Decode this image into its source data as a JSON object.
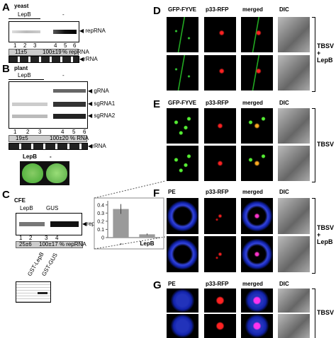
{
  "panels": {
    "A": {
      "letter": "A",
      "title": "yeast",
      "group1": "LepB",
      "group2": "-",
      "band": "repRNA",
      "lanes": [
        "1",
        "2",
        "3",
        "4",
        "5",
        "6"
      ],
      "quant1": "11±5",
      "quant2": "100±19",
      "unit": "% repRNA",
      "loading": "rRNA"
    },
    "B": {
      "letter": "B",
      "title": "plant",
      "group1": "LepB",
      "group2": "-",
      "bands": [
        "gRNA",
        "sgRNA1",
        "sgRNA2"
      ],
      "lanes": [
        "1",
        "2",
        "3",
        "4",
        "5",
        "6"
      ],
      "quant1": "19±5",
      "quant2": "100±20 % RNA",
      "loading": "rRNA",
      "leaf1": "LepB",
      "leaf2": "-"
    },
    "C": {
      "letter": "C",
      "title": "CFE",
      "group1": "LepB",
      "group2": "GUS",
      "band": "repRNA",
      "lanes": [
        "1",
        "2",
        "3",
        "4"
      ],
      "quant1": "25±6",
      "quant2": "100±17 % repRNA",
      "gel1": "GST-LepB",
      "gel2": "GST-GUS"
    },
    "D": {
      "letter": "D",
      "headers": [
        "GFP-FYVE",
        "p33-RFP",
        "merged",
        "DIC"
      ],
      "side": [
        "TBSV",
        "+",
        "LepB"
      ]
    },
    "E": {
      "letter": "E",
      "headers": [
        "GFP-FYVE",
        "p33-RFP",
        "merged",
        "DIC"
      ],
      "side": [
        "TBSV"
      ]
    },
    "F": {
      "letter": "F",
      "headers": [
        "PE",
        "p33-RFP",
        "merged",
        "DIC"
      ],
      "side": [
        "TBSV",
        "+",
        "LepB"
      ]
    },
    "G": {
      "letter": "G",
      "headers": [
        "PE",
        "p33-RFP",
        "merged",
        "DIC"
      ],
      "side": [
        "TBSV"
      ]
    }
  },
  "chart_data": {
    "type": "bar",
    "categories": [
      "-",
      "LepB"
    ],
    "values": [
      0.35,
      0.04
    ],
    "errors": [
      0.06,
      0.01
    ],
    "color": "#9a9a9a",
    "ylim": [
      0,
      0.45
    ],
    "yticks": [
      0,
      0.1,
      0.2,
      0.3,
      0.4
    ]
  }
}
